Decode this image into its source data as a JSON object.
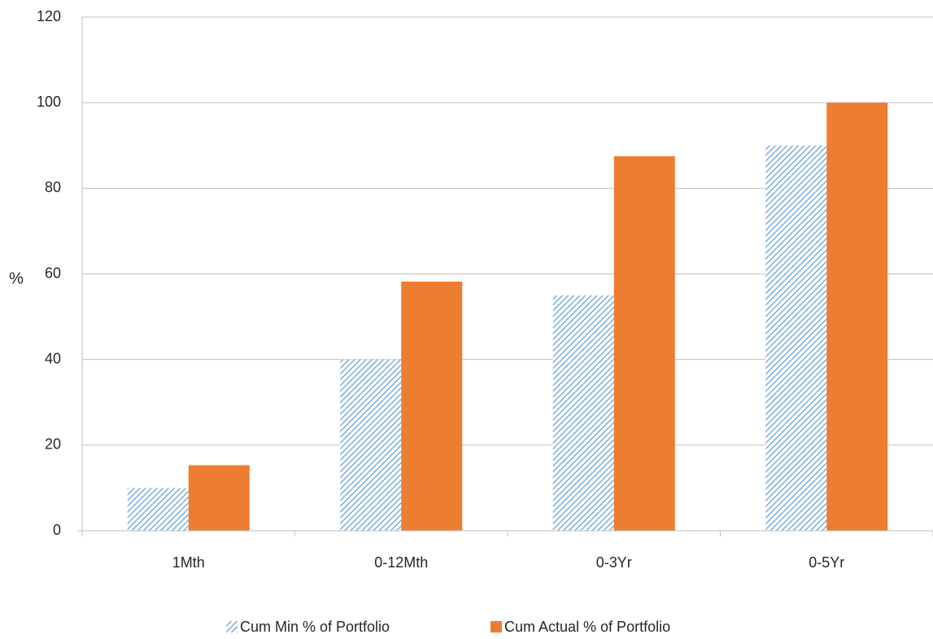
{
  "chart_data": {
    "type": "bar",
    "title": "",
    "xlabel": "",
    "ylabel": "%",
    "categories": [
      "1Mth",
      "0-12Mth",
      "0-3Yr",
      "0-5Yr"
    ],
    "ylim": [
      0,
      120
    ],
    "yticks": [
      0,
      20,
      40,
      60,
      80,
      100,
      120
    ],
    "grid": true,
    "legend_position": "bottom",
    "series": [
      {
        "name": "Cum Min % of Portfolio",
        "values": [
          10,
          40,
          55,
          90
        ],
        "color": "#9DC3E6",
        "pattern": "diagonal-hatch"
      },
      {
        "name": "Cum Actual % of Portfolio",
        "values": [
          15.3,
          58.2,
          87.5,
          100
        ],
        "color": "#ED7D31",
        "pattern": "solid"
      }
    ]
  }
}
